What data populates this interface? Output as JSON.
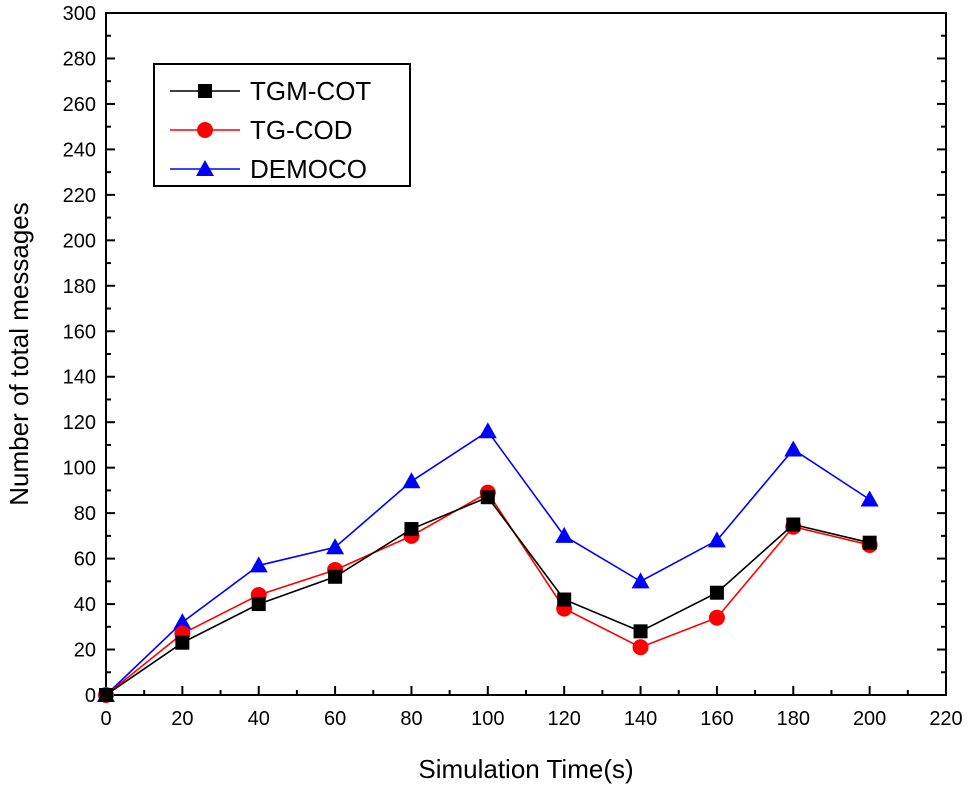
{
  "chart_data": {
    "type": "line",
    "title": "",
    "xlabel": "Simulation Time(s)",
    "ylabel": "Number of total messages",
    "xlim": [
      0,
      220
    ],
    "ylim": [
      0,
      300
    ],
    "x_ticks": [
      0,
      20,
      40,
      60,
      80,
      100,
      120,
      140,
      160,
      180,
      200,
      220
    ],
    "y_ticks": [
      0,
      20,
      40,
      60,
      80,
      100,
      120,
      140,
      160,
      180,
      200,
      220,
      240,
      260,
      280,
      300
    ],
    "grid": false,
    "legend_position": "top-left",
    "x": [
      0,
      20,
      40,
      60,
      80,
      100,
      120,
      140,
      160,
      180,
      200
    ],
    "series": [
      {
        "name": "TGM-COT",
        "color": "#000000",
        "marker": "square",
        "values": [
          0,
          23,
          40,
          52,
          73,
          87,
          42,
          28,
          45,
          75,
          67
        ]
      },
      {
        "name": "TG-COD",
        "color": "#ff0000",
        "marker": "circle",
        "values": [
          0,
          27,
          44,
          55,
          70,
          89,
          38,
          21,
          34,
          74,
          66
        ]
      },
      {
        "name": "DEMOCO",
        "color": "#0000ff",
        "marker": "triangle",
        "values": [
          0,
          32,
          57,
          65,
          94,
          116,
          70,
          50,
          68,
          108,
          86
        ]
      }
    ]
  }
}
